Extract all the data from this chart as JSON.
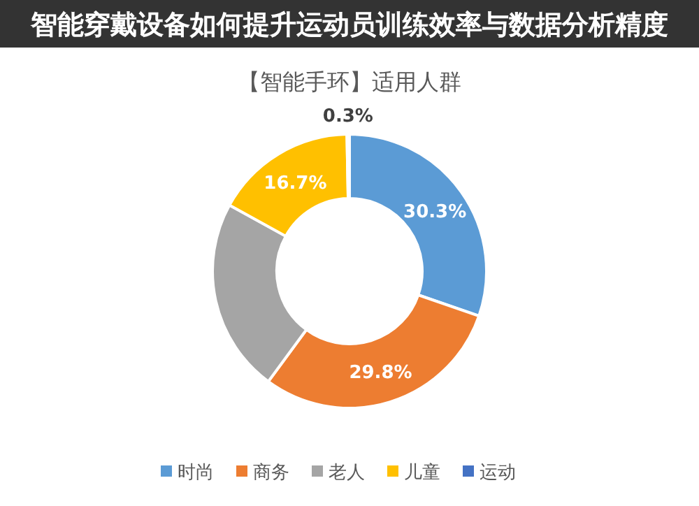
{
  "chart_data": {
    "type": "donut",
    "title": "【智能手环】适用人群",
    "annotations": [
      "智能穿戴设备如何提升运动员训练效率与数据分析精度"
    ],
    "categories": [
      "时尚",
      "商务",
      "老人",
      "儿童",
      "运动"
    ],
    "values": [
      30.3,
      29.8,
      22.9,
      16.7,
      0.3
    ],
    "colors": [
      "#5b9bd5",
      "#ed7d31",
      "#a5a5a5",
      "#ffc000",
      "#4472c4"
    ],
    "value_labels": [
      "30.3%",
      "29.8%",
      null,
      "16.7%",
      "0.3%"
    ],
    "legend": "bottom"
  }
}
